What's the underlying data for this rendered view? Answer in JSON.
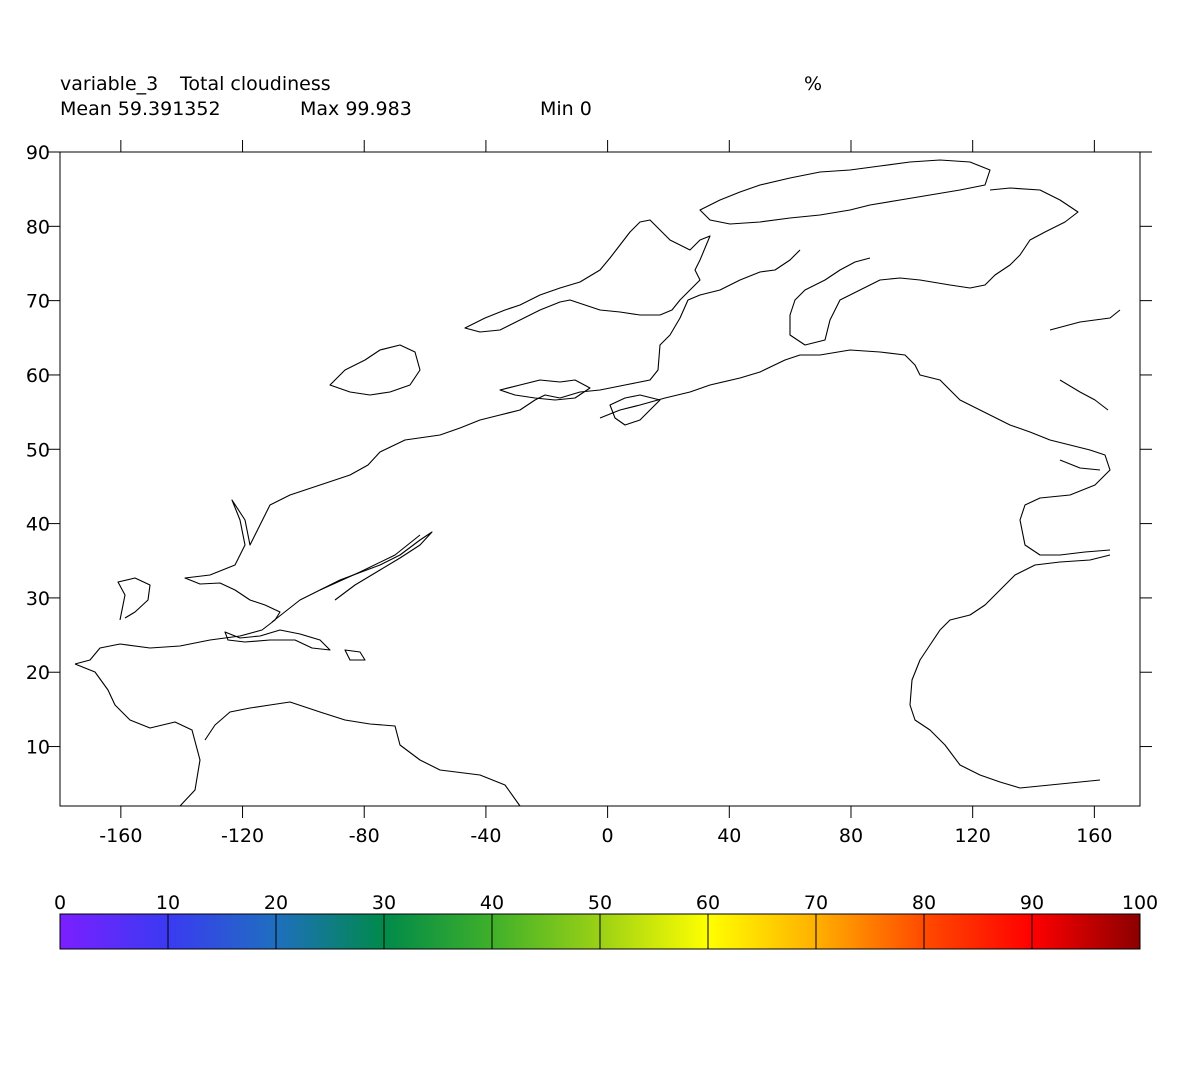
{
  "header": {
    "variable_name": "variable_3",
    "long_name": "Total cloudiness",
    "units": "%",
    "mean_label": "Mean 59.391352",
    "max_label": "Max 99.983",
    "min_label": "Min 0"
  },
  "chart_data": {
    "type": "heatmap",
    "title": "Total cloudiness",
    "xlim": [
      -180,
      175
    ],
    "ylim": [
      2,
      90
    ],
    "x_ticks": [
      -160,
      -120,
      -80,
      -40,
      0,
      40,
      80,
      120,
      160
    ],
    "y_ticks": [
      10,
      20,
      30,
      40,
      50,
      60,
      70,
      80,
      90
    ],
    "colorbar": {
      "ticks": [
        0,
        10,
        20,
        30,
        40,
        50,
        60,
        70,
        80,
        90,
        100
      ],
      "colors": [
        "#7b1fff",
        "#3a3af2",
        "#1f6fbf",
        "#008a4a",
        "#3fb02a",
        "#9bd115",
        "#ffff00",
        "#ffb000",
        "#ff4a00",
        "#ff0000",
        "#8b0000"
      ]
    },
    "grid": false
  }
}
